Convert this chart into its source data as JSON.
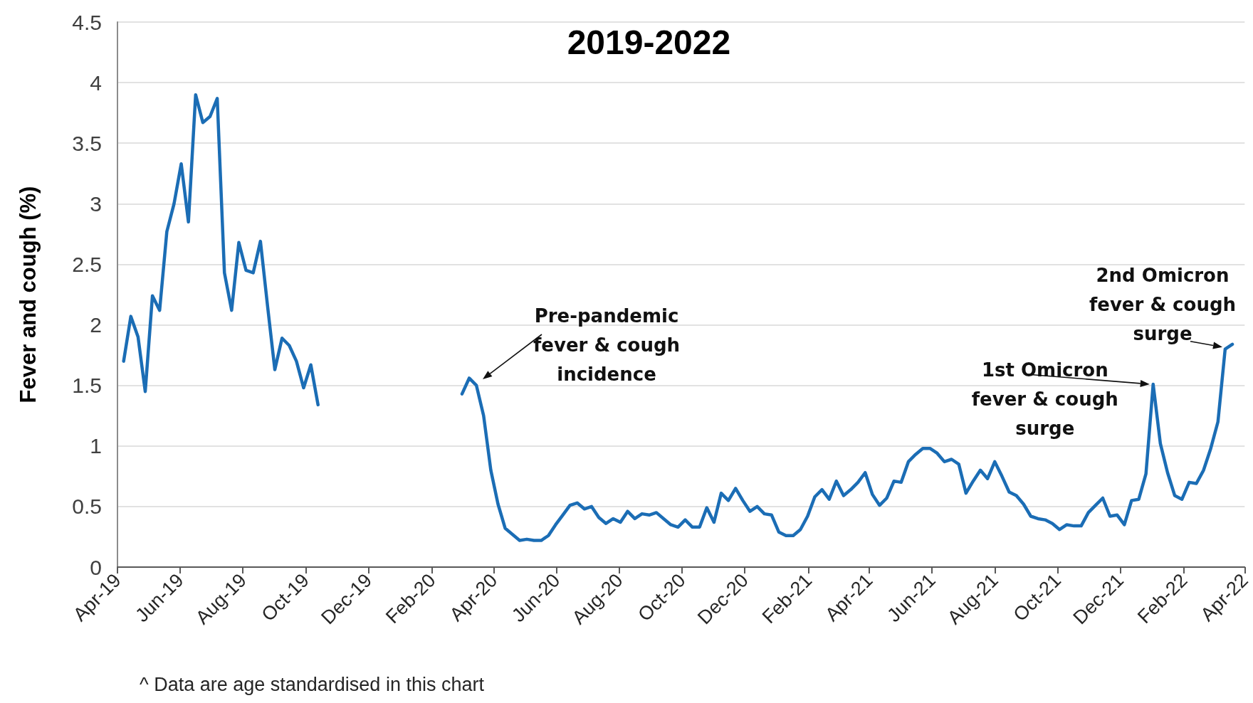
{
  "chart_data": {
    "type": "line",
    "title": "2019-2022",
    "ylabel": "Fever and cough (%)",
    "xlim": [
      "2019-04-01",
      "2022-04-01"
    ],
    "xticks": [
      {
        "value": "2019-04-01",
        "label": "Apr-19"
      },
      {
        "value": "2019-06-01",
        "label": "Jun-19"
      },
      {
        "value": "2019-08-01",
        "label": "Aug-19"
      },
      {
        "value": "2019-10-01",
        "label": "Oct-19"
      },
      {
        "value": "2019-12-01",
        "label": "Dec-19"
      },
      {
        "value": "2020-02-01",
        "label": "Feb-20"
      },
      {
        "value": "2020-04-01",
        "label": "Apr-20"
      },
      {
        "value": "2020-06-01",
        "label": "Jun-20"
      },
      {
        "value": "2020-08-01",
        "label": "Aug-20"
      },
      {
        "value": "2020-10-01",
        "label": "Oct-20"
      },
      {
        "value": "2020-12-01",
        "label": "Dec-20"
      },
      {
        "value": "2021-02-01",
        "label": "Feb-21"
      },
      {
        "value": "2021-04-01",
        "label": "Apr-21"
      },
      {
        "value": "2021-06-01",
        "label": "Jun-21"
      },
      {
        "value": "2021-08-01",
        "label": "Aug-21"
      },
      {
        "value": "2021-10-01",
        "label": "Oct-21"
      },
      {
        "value": "2021-12-01",
        "label": "Dec-21"
      },
      {
        "value": "2022-02-01",
        "label": "Feb-22"
      },
      {
        "value": "2022-04-01",
        "label": "Apr-22"
      }
    ],
    "ylim": [
      0,
      4.5
    ],
    "yticks": [
      0,
      0.5,
      1,
      1.5,
      2,
      2.5,
      3,
      3.5,
      4,
      4.5
    ],
    "grid": "y",
    "marker": "none",
    "line_style": "solid",
    "series": [
      {
        "color": "#1b6db5",
        "x": [
          "2019-04-07",
          "2019-04-14",
          "2019-04-21",
          "2019-04-28",
          "2019-05-05",
          "2019-05-12",
          "2019-05-19",
          "2019-05-26",
          "2019-06-02",
          "2019-06-09",
          "2019-06-16",
          "2019-06-23",
          "2019-06-30",
          "2019-07-07",
          "2019-07-14",
          "2019-07-21",
          "2019-07-28",
          "2019-08-04",
          "2019-08-11",
          "2019-08-18",
          "2019-08-25",
          "2019-09-01",
          "2019-09-08",
          "2019-09-15",
          "2019-09-22",
          "2019-09-29",
          "2019-10-06",
          "2019-10-13"
        ],
        "values": [
          1.7,
          2.07,
          1.9,
          1.45,
          2.24,
          2.12,
          2.77,
          3.0,
          3.33,
          2.85,
          3.9,
          3.67,
          3.72,
          3.87,
          2.43,
          2.12,
          2.68,
          2.45,
          2.43,
          2.69,
          2.15,
          1.63,
          1.89,
          1.83,
          1.7,
          1.48,
          1.67,
          1.34
        ]
      },
      {
        "color": "#1b6db5",
        "x": [
          "2020-03-01",
          "2020-03-08",
          "2020-03-15",
          "2020-03-22",
          "2020-03-29",
          "2020-04-05",
          "2020-04-12",
          "2020-04-19",
          "2020-04-26",
          "2020-05-03",
          "2020-05-10",
          "2020-05-17",
          "2020-05-24",
          "2020-05-31",
          "2020-06-07",
          "2020-06-14",
          "2020-06-21",
          "2020-06-28",
          "2020-07-05",
          "2020-07-12",
          "2020-07-19",
          "2020-07-26",
          "2020-08-02",
          "2020-08-09",
          "2020-08-16",
          "2020-08-23",
          "2020-08-30",
          "2020-09-06",
          "2020-09-13",
          "2020-09-20",
          "2020-09-27",
          "2020-10-04",
          "2020-10-11",
          "2020-10-18",
          "2020-10-25",
          "2020-11-01",
          "2020-11-08",
          "2020-11-15",
          "2020-11-22",
          "2020-11-29",
          "2020-12-06",
          "2020-12-13",
          "2020-12-20",
          "2020-12-27",
          "2021-01-03",
          "2021-01-10",
          "2021-01-17",
          "2021-01-24",
          "2021-01-31",
          "2021-02-07",
          "2021-02-14",
          "2021-02-21",
          "2021-02-28",
          "2021-03-07",
          "2021-03-14",
          "2021-03-21",
          "2021-03-28",
          "2021-04-04",
          "2021-04-11",
          "2021-04-18",
          "2021-04-25",
          "2021-05-02",
          "2021-05-09",
          "2021-05-16",
          "2021-05-23",
          "2021-05-30",
          "2021-06-06",
          "2021-06-13",
          "2021-06-20",
          "2021-06-27",
          "2021-07-04",
          "2021-07-11",
          "2021-07-18",
          "2021-07-25",
          "2021-08-01",
          "2021-08-08",
          "2021-08-15",
          "2021-08-22",
          "2021-08-29",
          "2021-09-05",
          "2021-09-12",
          "2021-09-19",
          "2021-09-26",
          "2021-10-03",
          "2021-10-10",
          "2021-10-17",
          "2021-10-24",
          "2021-10-31",
          "2021-11-07",
          "2021-11-14",
          "2021-11-21",
          "2021-11-28",
          "2021-12-05",
          "2021-12-12",
          "2021-12-19",
          "2021-12-26",
          "2022-01-02",
          "2022-01-09",
          "2022-01-16",
          "2022-01-23",
          "2022-01-30",
          "2022-02-06",
          "2022-02-13",
          "2022-02-20",
          "2022-02-27",
          "2022-03-06",
          "2022-03-13",
          "2022-03-20"
        ],
        "values": [
          1.43,
          1.56,
          1.5,
          1.25,
          0.8,
          0.52,
          0.32,
          0.27,
          0.22,
          0.23,
          0.22,
          0.22,
          0.26,
          0.35,
          0.43,
          0.51,
          0.53,
          0.48,
          0.5,
          0.41,
          0.36,
          0.4,
          0.37,
          0.46,
          0.4,
          0.44,
          0.43,
          0.45,
          0.4,
          0.35,
          0.33,
          0.39,
          0.33,
          0.33,
          0.49,
          0.37,
          0.61,
          0.55,
          0.65,
          0.55,
          0.46,
          0.5,
          0.44,
          0.43,
          0.29,
          0.26,
          0.26,
          0.31,
          0.42,
          0.58,
          0.64,
          0.56,
          0.71,
          0.59,
          0.64,
          0.7,
          0.78,
          0.6,
          0.51,
          0.57,
          0.71,
          0.7,
          0.87,
          0.93,
          0.98,
          0.98,
          0.94,
          0.87,
          0.89,
          0.85,
          0.61,
          0.71,
          0.8,
          0.73,
          0.87,
          0.75,
          0.62,
          0.59,
          0.52,
          0.42,
          0.4,
          0.39,
          0.36,
          0.31,
          0.35,
          0.34,
          0.34,
          0.45,
          0.51,
          0.57,
          0.42,
          0.43,
          0.35,
          0.55,
          0.56,
          0.77,
          1.51,
          1.02,
          0.78,
          0.59,
          0.56,
          0.7,
          0.69,
          0.8,
          0.98,
          1.2,
          1.8,
          1.84
        ]
      }
    ],
    "annotations": [
      "Pre-pandemic\nfever & cough\nincidence",
      {
        "text": "1st Omicron\nfever & cough\nsurge",
        "x": "2022-01-02",
        "y": 1.51
      },
      {
        "text": "2nd Omicron\nfever & cough\nsurge",
        "x": "2022-03-20",
        "y": 1.84
      },
      "^ Data are age standardised in this chart"
    ]
  }
}
